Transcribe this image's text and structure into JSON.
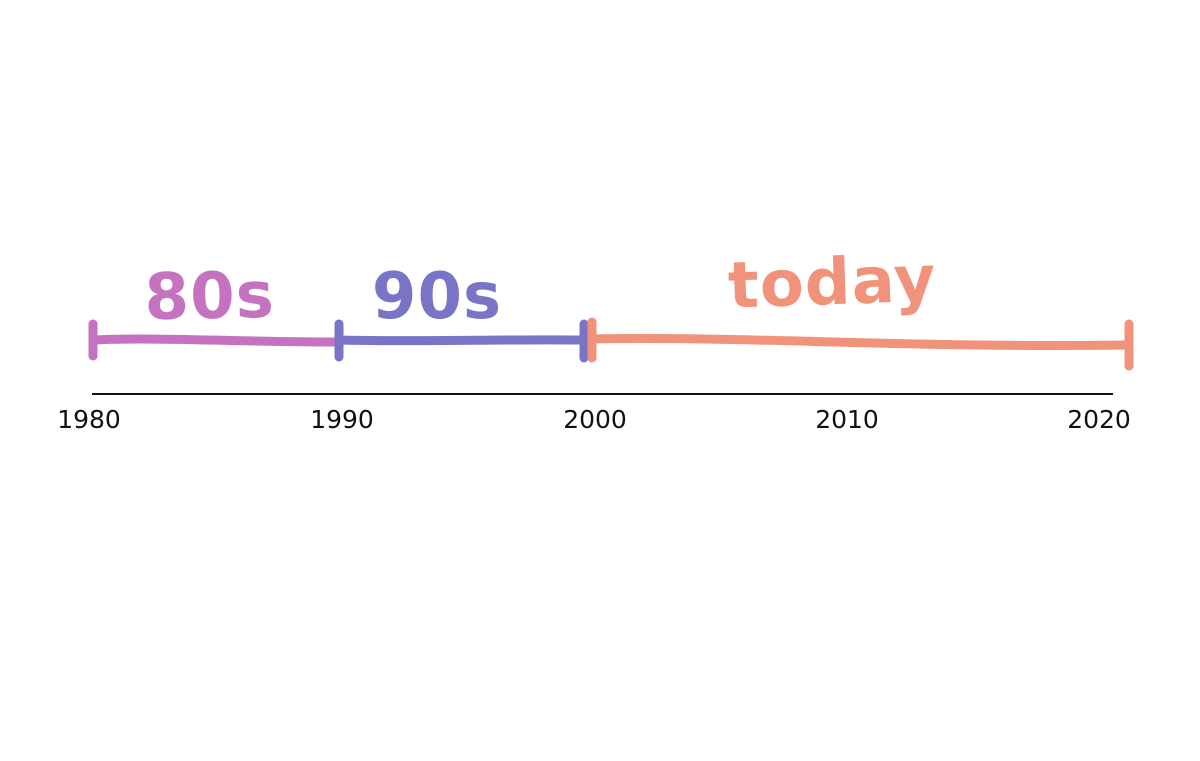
{
  "timeline": {
    "axis_color": "#111111",
    "years": [
      1980,
      1990,
      2000,
      2010,
      2020
    ],
    "year_labels": [
      "1980",
      "1990",
      "2000",
      "2010",
      "2020"
    ],
    "eras": [
      {
        "label": "80s",
        "start": 1980,
        "end": 1990,
        "color": "#c573c0"
      },
      {
        "label": "90s",
        "start": 1990,
        "end": 2000,
        "color": "#7a74c6"
      },
      {
        "label": "today",
        "start": 2000,
        "end": 2021,
        "color": "#f0937a"
      }
    ]
  }
}
